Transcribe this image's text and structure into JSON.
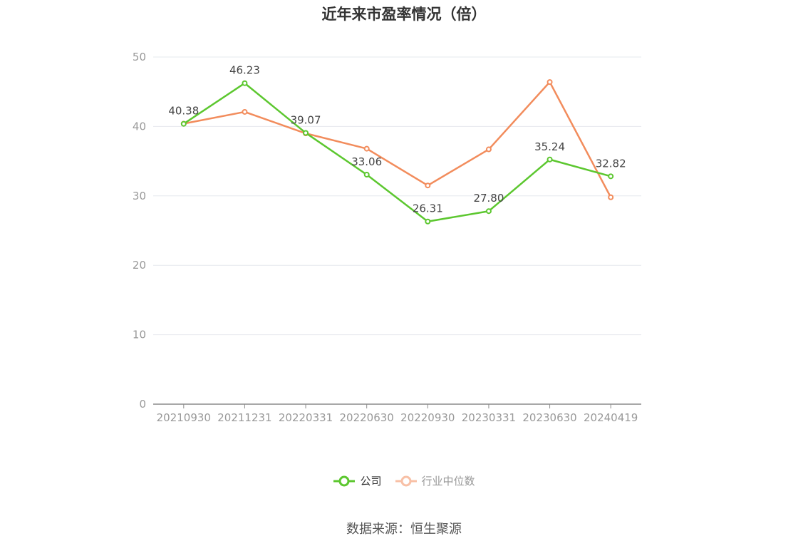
{
  "chart_data": {
    "type": "line",
    "title": "近年来市盈率情况（倍）",
    "categories": [
      "20210930",
      "20211231",
      "20220331",
      "20220630",
      "20220930",
      "20230331",
      "20230630",
      "20240419"
    ],
    "ylim": [
      0,
      50
    ],
    "yticks": [
      0,
      10,
      20,
      30,
      40,
      50
    ],
    "grid": true,
    "legend_position": "bottom",
    "series": [
      {
        "name": "公司",
        "color": "#5cc72f",
        "values": [
          40.38,
          46.23,
          39.07,
          33.06,
          26.31,
          27.8,
          35.24,
          32.82
        ],
        "labels": [
          "40.38",
          "46.23",
          "39.07",
          "33.06",
          "26.31",
          "27.80",
          "35.24",
          "32.82"
        ]
      },
      {
        "name": "行业中位数",
        "color": "#f28c5c",
        "values": [
          40.4,
          42.1,
          39.0,
          36.8,
          31.5,
          36.7,
          46.4,
          29.8
        ]
      }
    ]
  },
  "source": "数据来源：恒生聚源"
}
